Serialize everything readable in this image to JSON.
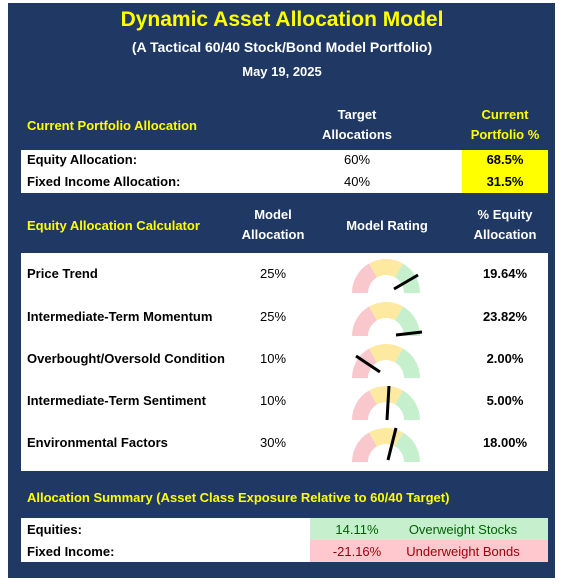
{
  "header": {
    "title": "Dynamic Asset Allocation Model",
    "subtitle": "(A Tactical 60/40 Stock/Bond Model Portfolio)",
    "date": "May 19, 2025"
  },
  "portfolio": {
    "heading": "Current Portfolio Allocation",
    "target_heading": "Target Allocations",
    "current_heading": "Current Portfolio %",
    "rows": [
      {
        "label": "Equity Allocation:",
        "target": "60%",
        "current": "68.5%"
      },
      {
        "label": "Fixed Income Allocation:",
        "target": "40%",
        "current": "31.5%"
      }
    ]
  },
  "calculator": {
    "heading": "Equity Allocation Calculator",
    "allocation_heading": "Model Allocation",
    "rating_heading": "Model Rating",
    "equity_heading": "% Equity Allocation",
    "rows": [
      {
        "label": "Price Trend",
        "allocation": "25%",
        "equity": "19.64%"
      },
      {
        "label": "Intermediate-Term Momentum",
        "allocation": "25%",
        "equity": "23.82%"
      },
      {
        "label": "Overbought/Oversold Condition",
        "allocation": "10%",
        "equity": "2.00%"
      },
      {
        "label": "Intermediate-Term Sentiment",
        "allocation": "10%",
        "equity": "5.00%"
      },
      {
        "label": "Environmental Factors",
        "allocation": "30%",
        "equity": "18.00%"
      }
    ]
  },
  "summary": {
    "heading": "Allocation Summary (Asset Class Exposure Relative to 60/40 Target)",
    "rows": [
      {
        "label": "Equities:",
        "value": "14.11%",
        "note": "Overweight Stocks"
      },
      {
        "label": "Fixed Income:",
        "value": "-21.16%",
        "note": "Underweight Bonds"
      }
    ]
  }
}
